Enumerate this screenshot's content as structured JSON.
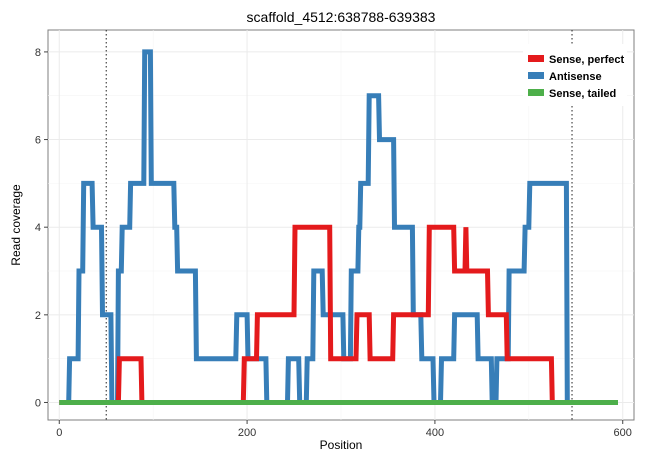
{
  "chart_data": {
    "type": "line",
    "title": "scaffold_4512:638788-639383",
    "xlabel": "Position",
    "ylabel": "Read coverage",
    "xlim": [
      -12,
      612
    ],
    "ylim": [
      -0.4,
      8.5
    ],
    "xticks": [
      0,
      200,
      400,
      600
    ],
    "yticks": [
      0,
      2,
      4,
      6,
      8
    ],
    "xtick_labels": [
      "0",
      "200",
      "400",
      "600"
    ],
    "ytick_labels": [
      "0",
      "2",
      "4",
      "6",
      "8"
    ],
    "grid": true,
    "legend_position": "top-right",
    "vlines": [
      50,
      546
    ],
    "series": [
      {
        "name": "Sense, perfect",
        "color": "#e41a1c",
        "x": [
          0,
          63,
          64,
          70,
          71,
          87,
          88,
          196,
          197,
          210,
          211,
          250,
          251,
          288,
          289,
          316,
          317,
          330,
          331,
          355,
          356,
          393,
          394,
          420,
          421,
          432,
          433,
          433,
          434,
          456,
          457,
          476,
          477,
          524,
          525,
          542,
          543,
          595
        ],
        "y": [
          0,
          0,
          1,
          1,
          1,
          1,
          0,
          0,
          1,
          1,
          2,
          2,
          4,
          4,
          1,
          1,
          2,
          2,
          1,
          1,
          2,
          2,
          4,
          4,
          3,
          3,
          4,
          4,
          3,
          3,
          2,
          2,
          1,
          1,
          0,
          0,
          0,
          0
        ]
      },
      {
        "name": "Antisense",
        "color": "#377eb8",
        "x": [
          0,
          10,
          11,
          20,
          21,
          25,
          26,
          35,
          36,
          45,
          46,
          55,
          56,
          62,
          63,
          66,
          67,
          75,
          76,
          90,
          91,
          97,
          98,
          122,
          123,
          125,
          126,
          145,
          146,
          188,
          189,
          200,
          201,
          220,
          221,
          243,
          244,
          255,
          256,
          263,
          264,
          270,
          271,
          280,
          281,
          302,
          303,
          310,
          311,
          318,
          319,
          320,
          321,
          329,
          330,
          340,
          341,
          356,
          357,
          376,
          377,
          385,
          386,
          398,
          399,
          406,
          407,
          420,
          421,
          445,
          446,
          460,
          461,
          465,
          466,
          478,
          479,
          495,
          496,
          500,
          501,
          540,
          541,
          595
        ],
        "y": [
          0,
          0,
          1,
          1,
          3,
          3,
          5,
          5,
          4,
          4,
          2,
          2,
          0,
          0,
          3,
          3,
          4,
          4,
          5,
          5,
          8,
          8,
          5,
          5,
          4,
          4,
          3,
          3,
          1,
          1,
          2,
          2,
          1,
          1,
          0,
          0,
          1,
          1,
          0,
          0,
          1,
          1,
          3,
          3,
          2,
          2,
          1,
          1,
          3,
          3,
          4,
          4,
          5,
          5,
          7,
          7,
          6,
          6,
          4,
          4,
          2,
          2,
          1,
          1,
          0,
          0,
          1,
          1,
          2,
          2,
          1,
          1,
          0,
          0,
          1,
          1,
          3,
          3,
          4,
          4,
          5,
          5,
          0,
          0
        ]
      },
      {
        "name": "Sense, tailed",
        "color": "#4daf4a",
        "x": [
          0,
          595
        ],
        "y": [
          0,
          0
        ]
      }
    ]
  }
}
